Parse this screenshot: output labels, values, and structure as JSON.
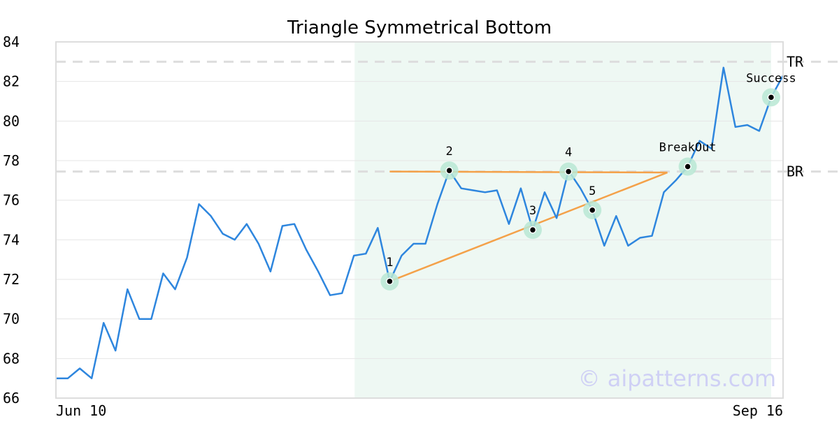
{
  "chart_data": {
    "type": "line",
    "title": "Triangle Symmetrical Bottom",
    "ylim": [
      66,
      84
    ],
    "yticks": [
      66,
      68,
      70,
      72,
      74,
      76,
      78,
      80,
      82,
      84
    ],
    "x_tick_labels": [
      "Jun 10",
      "Sep 16"
    ],
    "grid": true,
    "series": [
      {
        "color": "#2e86de",
        "values": [
          67.0,
          67.0,
          67.5,
          67.0,
          69.8,
          68.4,
          71.5,
          70.0,
          70.0,
          72.3,
          71.5,
          73.1,
          75.8,
          75.2,
          74.3,
          74.0,
          74.8,
          73.8,
          72.4,
          74.7,
          74.8,
          73.5,
          72.4,
          71.2,
          71.3,
          73.2,
          73.3,
          74.6,
          71.9,
          73.2,
          73.8,
          73.8,
          75.8,
          77.5,
          76.6,
          76.5,
          76.4,
          76.5,
          74.8,
          76.6,
          74.5,
          76.4,
          75.1,
          77.5,
          76.6,
          75.5,
          73.7,
          75.2,
          73.7,
          74.1,
          74.2,
          76.4,
          77.0,
          77.7,
          79.0,
          78.6,
          82.7,
          79.7,
          79.8,
          79.5,
          81.2,
          82.3
        ]
      }
    ],
    "shaded_region": {
      "from_index": 26,
      "to_index": 60,
      "color": "#eef8f3"
    },
    "horizontal_lines": [
      {
        "label": "TR",
        "y": 83.0,
        "color": "#dddddd"
      },
      {
        "label": "BR",
        "y": 77.45,
        "color": "#dddddd"
      }
    ],
    "trendlines": [
      {
        "color": "#f4a149",
        "from": {
          "i": 28,
          "y": 71.9
        },
        "to": {
          "i": 52,
          "y": 77.4
        }
      },
      {
        "color": "#f4a149",
        "from": {
          "i": 28,
          "y": 77.45
        },
        "to": {
          "i": 52,
          "y": 77.4
        }
      }
    ],
    "points": [
      {
        "label": "1",
        "i": 28,
        "y": 71.9,
        "label_pos": "above"
      },
      {
        "label": "2",
        "i": 33,
        "y": 77.5,
        "label_pos": "above"
      },
      {
        "label": "3",
        "i": 40,
        "y": 74.5,
        "label_pos": "above"
      },
      {
        "label": "4",
        "i": 43,
        "y": 77.45,
        "label_pos": "above"
      },
      {
        "label": "5",
        "i": 45,
        "y": 75.5,
        "label_pos": "above"
      },
      {
        "label": "BreakOut",
        "i": 53,
        "y": 77.7,
        "label_pos": "above"
      },
      {
        "label": "Success",
        "i": 60,
        "y": 81.2,
        "label_pos": "above"
      }
    ],
    "point_color": "#b9e8d3",
    "watermark": "© aipatterns.com"
  }
}
